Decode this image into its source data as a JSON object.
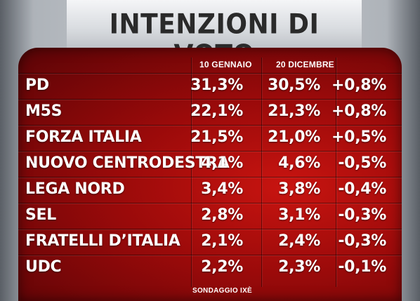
{
  "title": "INTENZIONI DI VOTO",
  "columns": {
    "jan": "10 GENNAIO",
    "dec": "20 DICEMBRE"
  },
  "rows": [
    {
      "party": "PD",
      "jan": "31,3%",
      "dec": "30,5%",
      "diff": "+0,8%"
    },
    {
      "party": "M5S",
      "jan": "22,1%",
      "dec": "21,3%",
      "diff": "+0,8%"
    },
    {
      "party": "FORZA ITALIA",
      "jan": "21,5%",
      "dec": "21,0%",
      "diff": "+0,5%"
    },
    {
      "party": "NUOVO CENTRODESTRA",
      "jan": "4,1%",
      "dec": "4,6%",
      "diff": "-0,5%"
    },
    {
      "party": "LEGA NORD",
      "jan": "3,4%",
      "dec": "3,8%",
      "diff": "-0,4%"
    },
    {
      "party": "SEL",
      "jan": "2,8%",
      "dec": "3,1%",
      "diff": "-0,3%"
    },
    {
      "party": "FRATELLI D’ITALIA",
      "jan": "2,1%",
      "dec": "2,4%",
      "diff": "-0,3%"
    },
    {
      "party": "UDC",
      "jan": "2,2%",
      "dec": "2,3%",
      "diff": "-0,1%"
    }
  ],
  "source": "SONDAGGIO IXÈ"
}
